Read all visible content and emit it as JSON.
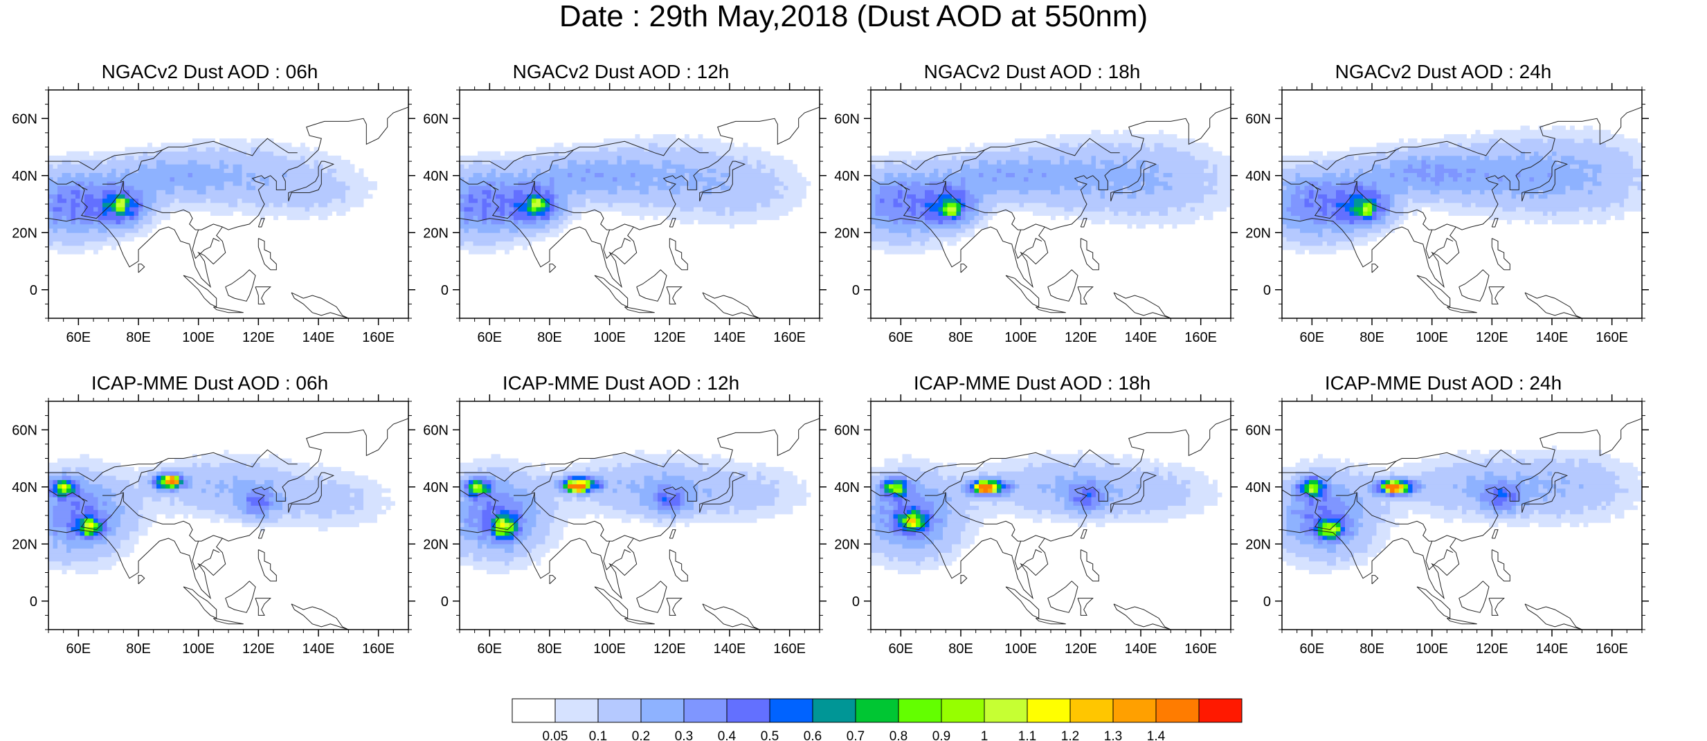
{
  "title": "Date : 29th May,2018 (Dust AOD at 550nm)",
  "chart_data": [
    {
      "type": "heatmap",
      "title": "NGACv2 Dust AOD : 06h",
      "model": "NGACv2",
      "hour": "06h",
      "xlim": [
        50,
        170
      ],
      "ylim": [
        -10,
        70
      ],
      "xticks": [
        "60E",
        "80E",
        "100E",
        "120E",
        "140E",
        "160E"
      ],
      "yticks": [
        "0",
        "20N",
        "40N",
        "60N"
      ],
      "dust_field": [
        {
          "lon": 58,
          "lat": 30,
          "aod": 0.4,
          "spread_lon": 18,
          "spread_lat": 12
        },
        {
          "lon": 75,
          "lat": 29,
          "aod": 0.45,
          "spread_lon": 8,
          "spread_lat": 6
        },
        {
          "lon": 74,
          "lat": 30,
          "aod": 0.55,
          "spread_lon": 2,
          "spread_lat": 2
        },
        {
          "lon": 90,
          "lat": 40,
          "aod": 0.2,
          "spread_lon": 20,
          "spread_lat": 8
        },
        {
          "lon": 115,
          "lat": 40,
          "aod": 0.15,
          "spread_lon": 25,
          "spread_lat": 12
        },
        {
          "lon": 140,
          "lat": 35,
          "aod": 0.1,
          "spread_lon": 20,
          "spread_lat": 10
        }
      ]
    },
    {
      "type": "heatmap",
      "title": "NGACv2 Dust AOD : 12h",
      "model": "NGACv2",
      "hour": "12h",
      "xlim": [
        50,
        170
      ],
      "ylim": [
        -10,
        70
      ],
      "xticks": [
        "60E",
        "80E",
        "100E",
        "120E",
        "140E",
        "160E"
      ],
      "yticks": [
        "0",
        "20N",
        "40N",
        "60N"
      ],
      "dust_field": [
        {
          "lon": 58,
          "lat": 30,
          "aod": 0.4,
          "spread_lon": 18,
          "spread_lat": 12
        },
        {
          "lon": 76,
          "lat": 29,
          "aod": 0.45,
          "spread_lon": 8,
          "spread_lat": 6
        },
        {
          "lon": 76,
          "lat": 30,
          "aod": 0.6,
          "spread_lon": 2,
          "spread_lat": 2
        },
        {
          "lon": 90,
          "lat": 40,
          "aod": 0.22,
          "spread_lon": 20,
          "spread_lat": 8
        },
        {
          "lon": 118,
          "lat": 40,
          "aod": 0.18,
          "spread_lon": 25,
          "spread_lat": 12
        },
        {
          "lon": 145,
          "lat": 35,
          "aod": 0.12,
          "spread_lon": 22,
          "spread_lat": 12
        }
      ]
    },
    {
      "type": "heatmap",
      "title": "NGACv2 Dust AOD : 18h",
      "model": "NGACv2",
      "hour": "18h",
      "xlim": [
        50,
        170
      ],
      "ylim": [
        -10,
        70
      ],
      "xticks": [
        "60E",
        "80E",
        "100E",
        "120E",
        "140E",
        "160E"
      ],
      "yticks": [
        "0",
        "20N",
        "40N",
        "60N"
      ],
      "dust_field": [
        {
          "lon": 60,
          "lat": 30,
          "aod": 0.4,
          "spread_lon": 18,
          "spread_lat": 12
        },
        {
          "lon": 77,
          "lat": 29,
          "aod": 0.45,
          "spread_lon": 8,
          "spread_lat": 6
        },
        {
          "lon": 77,
          "lat": 28,
          "aod": 0.65,
          "spread_lon": 2,
          "spread_lat": 2
        },
        {
          "lon": 92,
          "lat": 40,
          "aod": 0.22,
          "spread_lon": 20,
          "spread_lat": 8
        },
        {
          "lon": 120,
          "lat": 40,
          "aod": 0.18,
          "spread_lon": 25,
          "spread_lat": 12
        },
        {
          "lon": 148,
          "lat": 38,
          "aod": 0.15,
          "spread_lon": 25,
          "spread_lat": 14
        }
      ]
    },
    {
      "type": "heatmap",
      "title": "NGACv2 Dust AOD : 24h",
      "model": "NGACv2",
      "hour": "24h",
      "xlim": [
        50,
        170
      ],
      "ylim": [
        -10,
        70
      ],
      "xticks": [
        "60E",
        "80E",
        "100E",
        "120E",
        "140E",
        "160E"
      ],
      "yticks": [
        "0",
        "20N",
        "40N",
        "60N"
      ],
      "dust_field": [
        {
          "lon": 62,
          "lat": 30,
          "aod": 0.4,
          "spread_lon": 18,
          "spread_lat": 12
        },
        {
          "lon": 78,
          "lat": 29,
          "aod": 0.45,
          "spread_lon": 8,
          "spread_lat": 6
        },
        {
          "lon": 78,
          "lat": 28,
          "aod": 0.55,
          "spread_lon": 2,
          "spread_lat": 2
        },
        {
          "lon": 95,
          "lat": 41,
          "aod": 0.25,
          "spread_lon": 20,
          "spread_lat": 8
        },
        {
          "lon": 122,
          "lat": 40,
          "aod": 0.18,
          "spread_lon": 25,
          "spread_lat": 12
        },
        {
          "lon": 150,
          "lat": 40,
          "aod": 0.18,
          "spread_lon": 25,
          "spread_lat": 14
        }
      ]
    },
    {
      "type": "heatmap",
      "title": "ICAP-MME Dust AOD : 06h",
      "model": "ICAP-MME",
      "hour": "06h",
      "xlim": [
        50,
        170
      ],
      "ylim": [
        -10,
        70
      ],
      "xticks": [
        "60E",
        "80E",
        "100E",
        "120E",
        "140E",
        "160E"
      ],
      "yticks": [
        "0",
        "20N",
        "40N",
        "60N"
      ],
      "dust_field": [
        {
          "lon": 60,
          "lat": 30,
          "aod": 0.4,
          "spread_lon": 16,
          "spread_lat": 14
        },
        {
          "lon": 55,
          "lat": 40,
          "aod": 0.75,
          "spread_lon": 4,
          "spread_lat": 3
        },
        {
          "lon": 64,
          "lat": 26,
          "aod": 0.7,
          "spread_lon": 4,
          "spread_lat": 3
        },
        {
          "lon": 90,
          "lat": 42,
          "aod": 0.85,
          "spread_lon": 5,
          "spread_lat": 2.5
        },
        {
          "lon": 91,
          "lat": 42,
          "aod": 1.05,
          "spread_lon": 2,
          "spread_lat": 1.5
        },
        {
          "lon": 110,
          "lat": 40,
          "aod": 0.2,
          "spread_lon": 25,
          "spread_lat": 10
        },
        {
          "lon": 120,
          "lat": 34,
          "aod": 0.3,
          "spread_lon": 6,
          "spread_lat": 5
        },
        {
          "lon": 145,
          "lat": 35,
          "aod": 0.12,
          "spread_lon": 20,
          "spread_lat": 10
        }
      ]
    },
    {
      "type": "heatmap",
      "title": "ICAP-MME Dust AOD : 12h",
      "model": "ICAP-MME",
      "hour": "12h",
      "xlim": [
        50,
        170
      ],
      "ylim": [
        -10,
        70
      ],
      "xticks": [
        "60E",
        "80E",
        "100E",
        "120E",
        "140E",
        "160E"
      ],
      "yticks": [
        "0",
        "20N",
        "40N",
        "60N"
      ],
      "dust_field": [
        {
          "lon": 62,
          "lat": 30,
          "aod": 0.4,
          "spread_lon": 16,
          "spread_lat": 14
        },
        {
          "lon": 56,
          "lat": 40,
          "aod": 0.75,
          "spread_lon": 4,
          "spread_lat": 3
        },
        {
          "lon": 65,
          "lat": 26,
          "aod": 0.75,
          "spread_lon": 4,
          "spread_lat": 4
        },
        {
          "lon": 90,
          "lat": 41,
          "aod": 0.95,
          "spread_lon": 6,
          "spread_lat": 2.5
        },
        {
          "lon": 89,
          "lat": 40,
          "aod": 1.4,
          "spread_lon": 2.5,
          "spread_lat": 1.5
        },
        {
          "lon": 112,
          "lat": 40,
          "aod": 0.2,
          "spread_lon": 25,
          "spread_lat": 10
        },
        {
          "lon": 120,
          "lat": 35,
          "aod": 0.3,
          "spread_lon": 6,
          "spread_lat": 5
        },
        {
          "lon": 145,
          "lat": 38,
          "aod": 0.12,
          "spread_lon": 22,
          "spread_lat": 10
        }
      ]
    },
    {
      "type": "heatmap",
      "title": "ICAP-MME Dust AOD : 18h",
      "model": "ICAP-MME",
      "hour": "18h",
      "xlim": [
        50,
        170
      ],
      "ylim": [
        -10,
        70
      ],
      "xticks": [
        "60E",
        "80E",
        "100E",
        "120E",
        "140E",
        "160E"
      ],
      "yticks": [
        "0",
        "20N",
        "40N",
        "60N"
      ],
      "dust_field": [
        {
          "lon": 63,
          "lat": 30,
          "aod": 0.4,
          "spread_lon": 16,
          "spread_lat": 14
        },
        {
          "lon": 58,
          "lat": 40,
          "aod": 0.75,
          "spread_lon": 4,
          "spread_lat": 3
        },
        {
          "lon": 64,
          "lat": 28,
          "aod": 0.75,
          "spread_lon": 4,
          "spread_lat": 3
        },
        {
          "lon": 89,
          "lat": 40,
          "aod": 0.95,
          "spread_lon": 6,
          "spread_lat": 2.5
        },
        {
          "lon": 88,
          "lat": 40,
          "aod": 1.4,
          "spread_lon": 2.5,
          "spread_lat": 1.5
        },
        {
          "lon": 113,
          "lat": 40,
          "aod": 0.2,
          "spread_lon": 25,
          "spread_lat": 10
        },
        {
          "lon": 122,
          "lat": 36,
          "aod": 0.3,
          "spread_lon": 6,
          "spread_lat": 5
        },
        {
          "lon": 145,
          "lat": 38,
          "aod": 0.12,
          "spread_lon": 22,
          "spread_lat": 10
        }
      ]
    },
    {
      "type": "heatmap",
      "title": "ICAP-MME Dust AOD : 24h",
      "model": "ICAP-MME",
      "hour": "24h",
      "xlim": [
        50,
        170
      ],
      "ylim": [
        -10,
        70
      ],
      "xticks": [
        "60E",
        "80E",
        "100E",
        "120E",
        "140E",
        "160E"
      ],
      "yticks": [
        "0",
        "20N",
        "40N",
        "60N"
      ],
      "dust_field": [
        {
          "lon": 64,
          "lat": 30,
          "aod": 0.4,
          "spread_lon": 16,
          "spread_lat": 14
        },
        {
          "lon": 60,
          "lat": 40,
          "aod": 0.75,
          "spread_lon": 4,
          "spread_lat": 3
        },
        {
          "lon": 66,
          "lat": 25,
          "aod": 0.75,
          "spread_lon": 4,
          "spread_lat": 3
        },
        {
          "lon": 88,
          "lat": 40,
          "aod": 0.95,
          "spread_lon": 6,
          "spread_lat": 2.5
        },
        {
          "lon": 87,
          "lat": 40,
          "aod": 1.3,
          "spread_lon": 2.5,
          "spread_lat": 1.5
        },
        {
          "lon": 115,
          "lat": 40,
          "aod": 0.2,
          "spread_lon": 25,
          "spread_lat": 10
        },
        {
          "lon": 123,
          "lat": 36,
          "aod": 0.3,
          "spread_lon": 6,
          "spread_lat": 5
        },
        {
          "lon": 148,
          "lat": 40,
          "aod": 0.15,
          "spread_lon": 22,
          "spread_lat": 12
        }
      ]
    }
  ],
  "colorbar": {
    "labels": [
      "0.05",
      "0.1",
      "0.2",
      "0.3",
      "0.4",
      "0.5",
      "0.6",
      "0.7",
      "0.8",
      "0.9",
      "1",
      "1.1",
      "1.2",
      "1.3",
      "1.4"
    ],
    "levels": [
      0.05,
      0.1,
      0.2,
      0.3,
      0.4,
      0.5,
      0.6,
      0.7,
      0.8,
      0.9,
      1.0,
      1.1,
      1.2,
      1.3,
      1.4
    ],
    "colors": [
      "#ffffff",
      "#d6e2ff",
      "#b5c9ff",
      "#8eb2ff",
      "#7f96ff",
      "#6370ff",
      "#0063ff",
      "#009696",
      "#00c633",
      "#63ff00",
      "#96ff00",
      "#c6ff33",
      "#ffff00",
      "#ffc600",
      "#ffa000",
      "#ff7c00",
      "#ff1900"
    ]
  }
}
